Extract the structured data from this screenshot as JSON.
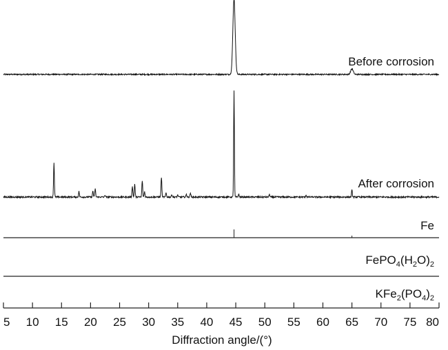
{
  "chart_data": {
    "type": "line",
    "title": "",
    "xlabel": "Diffraction angle/(°)",
    "ylabel": "",
    "xlim": [
      5,
      80
    ],
    "xticks": [
      5,
      10,
      15,
      20,
      25,
      30,
      35,
      40,
      45,
      50,
      55,
      60,
      65,
      70,
      75,
      80
    ],
    "grid": false,
    "legend": "none",
    "series": [
      {
        "name": "Before corrosion",
        "peaks": [
          {
            "x": 44.7,
            "height": 110
          },
          {
            "x": 65.0,
            "height": 8
          }
        ]
      },
      {
        "name": "After corrosion",
        "peaks": [
          {
            "x": 13.7,
            "height": 50
          },
          {
            "x": 18.0,
            "height": 8
          },
          {
            "x": 20.4,
            "height": 9
          },
          {
            "x": 20.8,
            "height": 12
          },
          {
            "x": 22.5,
            "height": 3
          },
          {
            "x": 27.2,
            "height": 16
          },
          {
            "x": 27.6,
            "height": 19
          },
          {
            "x": 28.9,
            "height": 24
          },
          {
            "x": 29.3,
            "height": 8
          },
          {
            "x": 32.2,
            "height": 29
          },
          {
            "x": 33.0,
            "height": 6
          },
          {
            "x": 34.0,
            "height": 4
          },
          {
            "x": 35.0,
            "height": 3
          },
          {
            "x": 36.5,
            "height": 4
          },
          {
            "x": 37.2,
            "height": 6
          },
          {
            "x": 44.7,
            "height": 155
          },
          {
            "x": 45.5,
            "height": 4
          },
          {
            "x": 50.8,
            "height": 4
          },
          {
            "x": 57.1,
            "height": 3
          },
          {
            "x": 65.0,
            "height": 10
          }
        ]
      }
    ],
    "reference_patterns": [
      {
        "name": "Fe",
        "sticks": [
          {
            "x": 44.7,
            "height": 12
          },
          {
            "x": 65.0,
            "height": 3
          }
        ]
      },
      {
        "name": "FePO4(H2O)2",
        "sticks": []
      },
      {
        "name": "KFe2(PO4)2",
        "sticks": []
      }
    ]
  }
}
